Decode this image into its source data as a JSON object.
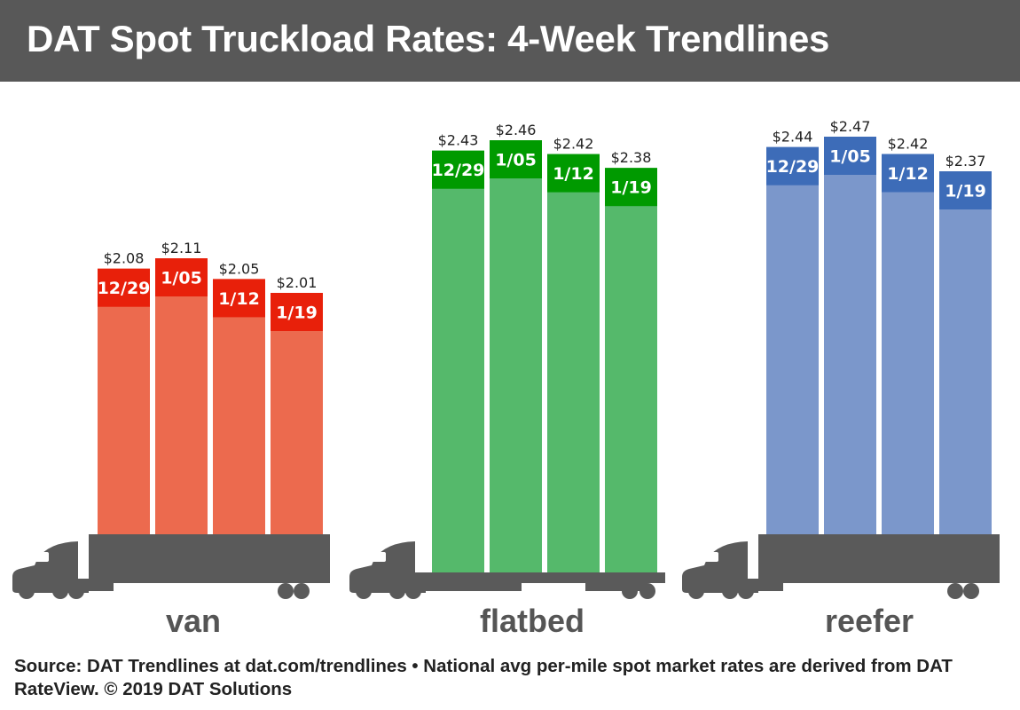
{
  "chart_data": {
    "type": "bar",
    "title": "DAT Spot Truckload Rates: 4-Week Trendlines",
    "categories": [
      "12/29",
      "1/05",
      "1/12",
      "1/19"
    ],
    "series": [
      {
        "name": "van",
        "values": [
          2.08,
          2.11,
          2.05,
          2.01
        ],
        "value_labels": [
          "$2.08",
          "$2.11",
          "$2.05",
          "$2.01"
        ],
        "color": "#ec6a4e",
        "label_color": "#e8200a"
      },
      {
        "name": "flatbed",
        "values": [
          2.43,
          2.46,
          2.42,
          2.38
        ],
        "value_labels": [
          "$2.43",
          "$2.46",
          "$2.42",
          "$2.38"
        ],
        "color": "#55b96b",
        "label_color": "#009a00"
      },
      {
        "name": "reefer",
        "values": [
          2.44,
          2.47,
          2.42,
          2.37
        ],
        "value_labels": [
          "$2.44",
          "$2.47",
          "$2.42",
          "$2.37"
        ],
        "color": "#7b97cb",
        "label_color": "#3d6cb8"
      }
    ],
    "grid": false
  },
  "footer": {
    "source": "Source: DAT Trendlines at dat.com/trendlines • National avg per-mile spot market rates are derived from DAT RateView. © 2019 DAT Solutions"
  },
  "colors": {
    "header": "#585858",
    "truck": "#5a5a5a"
  }
}
